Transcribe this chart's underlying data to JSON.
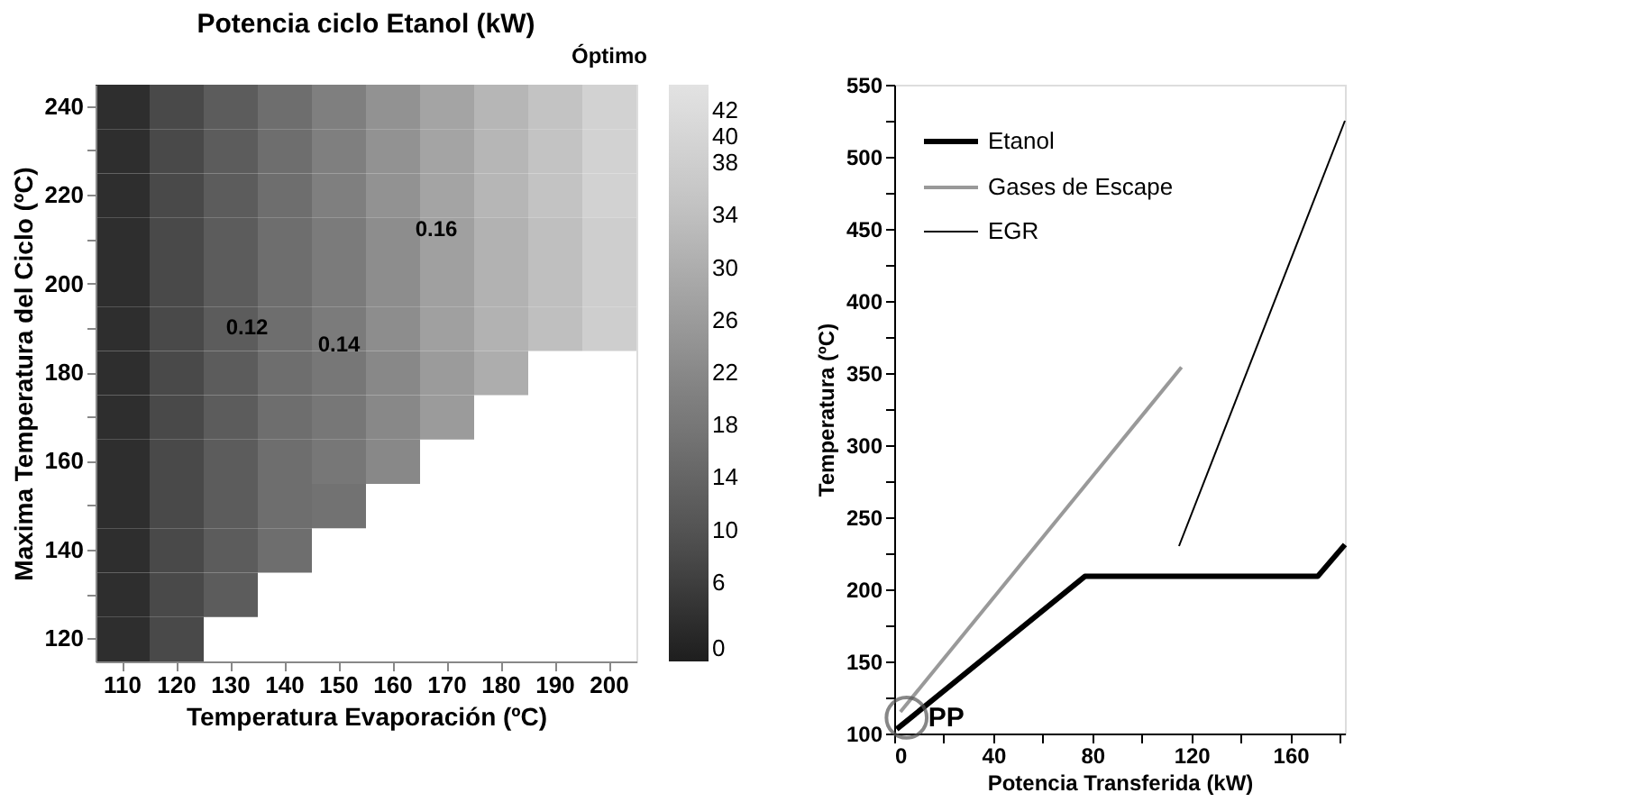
{
  "chart_data": [
    {
      "type": "heatmap",
      "title": "Potencia ciclo Etanol (kW)",
      "xlabel": "Temperatura Evaporación (ºC)",
      "ylabel": "Maxima Temperatura del Ciclo (ºC)",
      "categories": [
        "110",
        "120",
        "130",
        "140",
        "150",
        "160",
        "170",
        "180",
        "190",
        "200"
      ],
      "y_categories": [
        "240",
        null,
        "220",
        null,
        "200",
        null,
        "180",
        null,
        "160",
        null,
        "140",
        null,
        "120"
      ],
      "cells": [
        [
          3,
          8,
          12,
          16,
          20,
          24,
          28,
          32,
          35,
          39
        ],
        [
          3,
          8,
          12,
          16,
          20,
          24,
          28,
          32,
          35,
          39
        ],
        [
          3,
          8,
          12,
          16,
          20,
          24,
          28,
          32,
          35,
          39
        ],
        [
          3,
          8,
          12,
          16,
          19,
          23,
          27,
          31,
          34,
          38
        ],
        [
          3,
          8,
          12,
          16,
          19,
          23,
          27,
          31,
          34,
          38
        ],
        [
          3,
          8,
          12,
          16,
          19,
          23,
          27,
          31,
          34,
          38
        ],
        [
          3,
          8,
          12,
          16,
          18,
          22,
          26,
          30,
          null,
          null
        ],
        [
          3,
          8,
          12,
          16,
          18,
          22,
          26,
          null,
          null,
          null
        ],
        [
          3,
          8,
          12,
          16,
          18,
          22,
          null,
          null,
          null,
          null
        ],
        [
          3,
          8,
          12,
          16,
          17,
          null,
          null,
          null,
          null,
          null
        ],
        [
          3,
          8,
          12,
          16,
          null,
          null,
          null,
          null,
          null,
          null
        ],
        [
          3,
          8,
          12,
          null,
          null,
          null,
          null,
          null,
          null,
          null
        ],
        [
          3,
          8,
          null,
          null,
          null,
          null,
          null,
          null,
          null,
          null
        ]
      ],
      "clim": [
        0,
        44
      ],
      "cticks": [
        0,
        6,
        10,
        14,
        18,
        22,
        26,
        30,
        34,
        38,
        40,
        42
      ],
      "annotations": [
        "0.12",
        "0.14",
        "0.16",
        "Óptimo"
      ]
    },
    {
      "type": "line",
      "xlabel": "Potencia  Transferida (kW)",
      "ylabel": "Temperatura (ºC)",
      "xlim": [
        0,
        182
      ],
      "xticks": [
        0,
        {
          "value": 20,
          "label": null
        },
        40,
        {
          "value": 60,
          "label": null
        },
        80,
        {
          "value": 100,
          "label": null
        },
        120,
        {
          "value": 140,
          "label": null
        },
        160,
        {
          "value": 180,
          "label": null
        }
      ],
      "ylim": [
        100,
        550
      ],
      "yticks": [
        100,
        {
          "value": 125,
          "label": null
        },
        150,
        {
          "value": 175,
          "label": null
        },
        200,
        {
          "value": 225,
          "label": null
        },
        250,
        {
          "value": 275,
          "label": null
        },
        300,
        {
          "value": 325,
          "label": null
        },
        350,
        {
          "value": 375,
          "label": null
        },
        400,
        {
          "value": 425,
          "label": null
        },
        450,
        {
          "value": 475,
          "label": null
        },
        500,
        {
          "value": 525,
          "label": null
        },
        550
      ],
      "grid": false,
      "legend": "top left",
      "marker": "none",
      "line_style": "solid",
      "series": [
        {
          "name": "Etanol",
          "color": "#000000",
          "x": [
            1,
            77,
            171,
            182
          ],
          "values": [
            103,
            209,
            209,
            231
          ]
        },
        {
          "name": "Gases de Escape",
          "color": "#999999",
          "x": [
            2.5,
            116
          ],
          "values": [
            115,
            354
          ]
        },
        {
          "name": "EGR",
          "color": "#000000",
          "x": [
            115,
            182
          ],
          "values": [
            230,
            525
          ]
        }
      ],
      "annotations": [
        {
          "text": "PP",
          "x": 5,
          "y": 111
        }
      ]
    }
  ]
}
